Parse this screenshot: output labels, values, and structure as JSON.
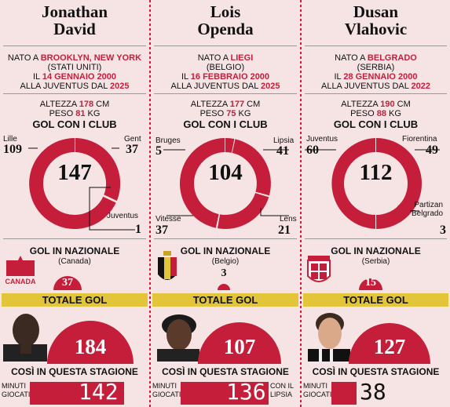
{
  "headers": {
    "gol_club": "GOL CON I CLUB",
    "gol_nazionale": "GOL IN NAZIONALE",
    "totale": "TOTALE GOL",
    "stagione": "COSÌ IN QUESTA STAGIONE",
    "minuti": "MINUTI",
    "giocati": "GIOCATI"
  },
  "colors": {
    "red": "#c41e3a",
    "yellow": "#e3c53a",
    "background": "#f6e4e4"
  },
  "players": [
    {
      "name1": "Jonathan",
      "name2": "David",
      "born_prefix": "NATO A",
      "born_city": "BROOKLYN, NEW YORK",
      "born_country": "(STATI UNITI)",
      "date_prefix": "IL",
      "date": "14 GENNAIO 2000",
      "juve_prefix": "ALLA JUVENTUS DAL",
      "juve_year": "2025",
      "height_prefix": "ALTEZZA",
      "height": "178",
      "height_unit": "CM",
      "weight_prefix": "PESO",
      "weight": "81",
      "weight_unit": "KG",
      "club_total": "147",
      "clubs": [
        {
          "name": "Lille",
          "goals": "109"
        },
        {
          "name": "Gent",
          "goals": "37"
        },
        {
          "name": "Juventus",
          "goals": "1"
        }
      ],
      "nation": "(Canada)",
      "nation_goals": "37",
      "total_goals": "184",
      "minutes": "142",
      "minutes_note": ""
    },
    {
      "name1": "Lois",
      "name2": "Openda",
      "born_prefix": "NATO A",
      "born_city": "LIEGI",
      "born_country": "(BELGIO)",
      "date_prefix": "IL",
      "date": "16 FEBBRAIO 2000",
      "juve_prefix": "ALLA JUVENTUS DAL",
      "juve_year": "2025",
      "height_prefix": "ALTEZZA",
      "height": "177",
      "height_unit": "CM",
      "weight_prefix": "PESO",
      "weight": "75",
      "weight_unit": "KG",
      "club_total": "104",
      "clubs": [
        {
          "name": "Bruges",
          "goals": "5"
        },
        {
          "name": "Lipsia",
          "goals": "41"
        },
        {
          "name": "Vitesse",
          "goals": "37"
        },
        {
          "name": "Lens",
          "goals": "21"
        }
      ],
      "nation": "(Belgio)",
      "nation_goals": "3",
      "total_goals": "107",
      "minutes": "136",
      "minutes_note1": "CON IL",
      "minutes_note2": "LIPSIA"
    },
    {
      "name1": "Dusan",
      "name2": "Vlahovic",
      "born_prefix": "NATO A",
      "born_city": "BELGRADO",
      "born_country": "(SERBIA)",
      "date_prefix": "IL",
      "date": "28 GENNAIO 2000",
      "juve_prefix": "ALLA JUVENTUS DAL",
      "juve_year": "2022",
      "height_prefix": "ALTEZZA",
      "height": "190",
      "height_unit": "CM",
      "weight_prefix": "PESO",
      "weight": "88",
      "weight_unit": "KG",
      "club_total": "112",
      "clubs": [
        {
          "name": "Juventus",
          "goals": "60"
        },
        {
          "name": "Fiorentina",
          "goals": "49"
        },
        {
          "name1": "Partizan",
          "name2": "Belgrado",
          "goals": "3"
        }
      ],
      "nation": "(Serbia)",
      "nation_goals": "15",
      "total_goals": "127",
      "minutes": "38"
    }
  ]
}
